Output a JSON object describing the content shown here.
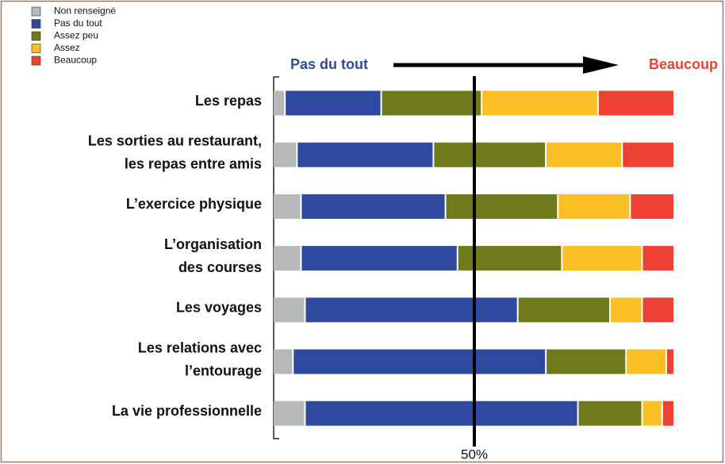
{
  "chart_data": {
    "type": "stacked-bar-horizontal",
    "categories": [
      [
        "Les repas"
      ],
      [
        "Les sorties au restaurant,",
        "les repas entre amis"
      ],
      [
        "L’exercice physique"
      ],
      [
        "L’organisation",
        "des courses"
      ],
      [
        "Les voyages"
      ],
      [
        "Les relations avec",
        "l’entourage"
      ],
      [
        "La vie professionnelle"
      ]
    ],
    "series": [
      {
        "name": "Non renseigné",
        "color": "#b5b9b9",
        "values": [
          3,
          6,
          7,
          7,
          8,
          5,
          8
        ]
      },
      {
        "name": "Pas du tout",
        "color": "#2e4a9e",
        "values": [
          24,
          34,
          36,
          39,
          53,
          63,
          68
        ]
      },
      {
        "name": "Assez peu",
        "color": "#6f7a1a",
        "values": [
          25,
          28,
          28,
          26,
          23,
          20,
          16
        ]
      },
      {
        "name": "Assez",
        "color": "#fbbf26",
        "values": [
          29,
          19,
          18,
          20,
          8,
          10,
          5
        ]
      },
      {
        "name": "Beaucoup",
        "color": "#ec4133",
        "values": [
          19,
          13,
          11,
          8,
          8,
          2,
          3
        ]
      }
    ],
    "xlim": [
      0,
      100
    ],
    "marker_line": {
      "value": 50,
      "label": "50%"
    },
    "scale_start": "Pas du tout",
    "scale_end": "Beaucoup",
    "legend": "top-left"
  }
}
